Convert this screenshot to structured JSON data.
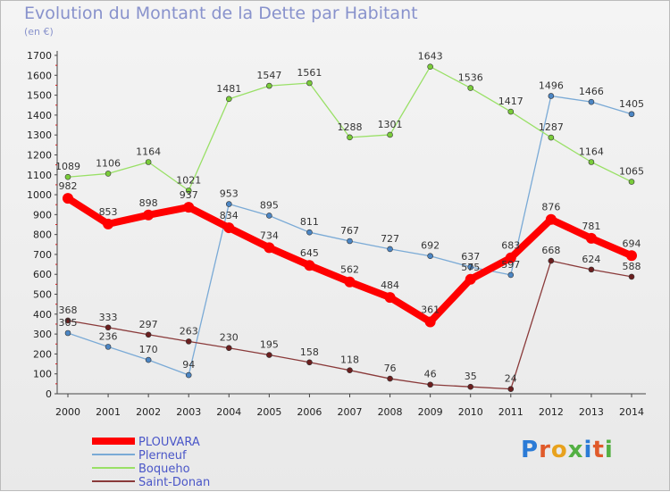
{
  "chart_data": {
    "type": "line",
    "title": "Evolution du Montant de la Dette par Habitant",
    "subtitle": "(en €)",
    "categories": [
      "2000",
      "2001",
      "2002",
      "2003",
      "2004",
      "2005",
      "2006",
      "2007",
      "2008",
      "2009",
      "2010",
      "2011",
      "2012",
      "2013",
      "2014"
    ],
    "ylim": [
      0,
      1700
    ],
    "yticks": [
      0,
      100,
      200,
      300,
      400,
      500,
      600,
      700,
      800,
      900,
      1000,
      1100,
      1200,
      1300,
      1400,
      1500,
      1600,
      1700
    ],
    "grid": false,
    "legend_position": "bottom-left",
    "series": [
      {
        "name": "PLOUVARA",
        "color": "#ff0000",
        "point_color": "#ff0000",
        "values": [
          982,
          853,
          898,
          937,
          834,
          734,
          645,
          562,
          484,
          361,
          575,
          683,
          876,
          781,
          694
        ]
      },
      {
        "name": "Plerneuf",
        "color": "#7aaad6",
        "point_color": "#4c86c4",
        "values": [
          305,
          236,
          170,
          94,
          953,
          895,
          811,
          767,
          727,
          692,
          637,
          597,
          1496,
          1466,
          1405
        ]
      },
      {
        "name": "Boqueho",
        "color": "#99e066",
        "point_color": "#7acc3a",
        "values": [
          1089,
          1106,
          1164,
          1021,
          1481,
          1547,
          1561,
          1288,
          1301,
          1643,
          1536,
          1417,
          1287,
          1164,
          1065
        ]
      },
      {
        "name": "Saint-Donan",
        "color": "#8a3a3a",
        "point_color": "#6b1f1f",
        "values": [
          368,
          333,
          297,
          263,
          230,
          195,
          158,
          118,
          76,
          46,
          35,
          24,
          668,
          624,
          588
        ]
      }
    ]
  },
  "logo": [
    "P",
    "r",
    "o",
    "x",
    "i",
    "t",
    "i"
  ]
}
